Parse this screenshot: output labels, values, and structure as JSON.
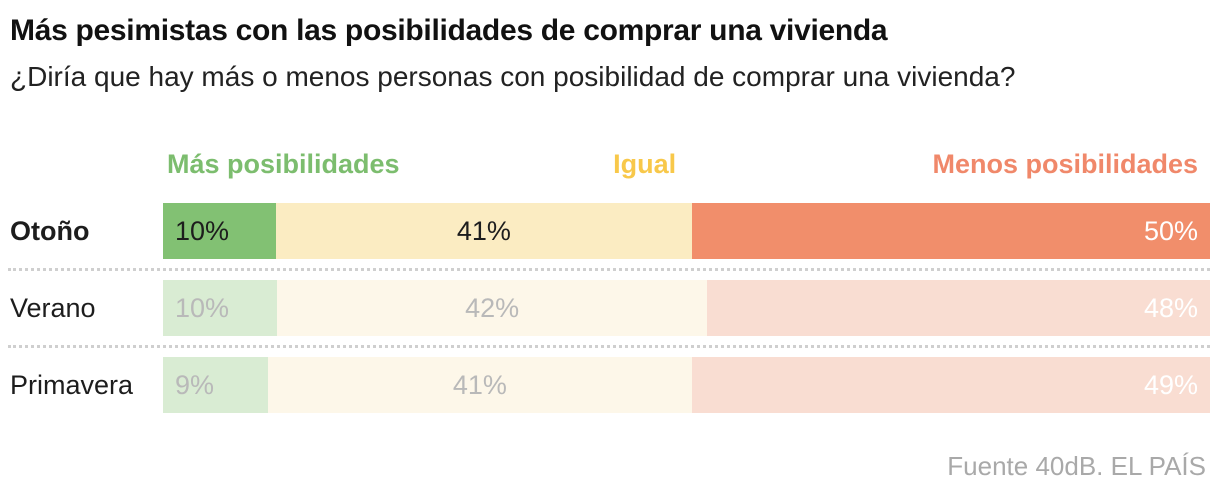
{
  "header": {
    "title": "Más pesimistas con las posibilidades de comprar una vivienda",
    "subtitle": "¿Diría que hay más o menos personas con posibilidad de comprar una vivienda?"
  },
  "legend": {
    "items": [
      {
        "label": "Más posibilidades",
        "color": "#7cbd6e"
      },
      {
        "label": "Igual",
        "color": "#f8c84a"
      },
      {
        "label": "Menos posibilidades",
        "color": "#f0886a"
      }
    ]
  },
  "chart_data": {
    "type": "bar",
    "orientation": "horizontal-stacked",
    "title": "Más pesimistas con las posibilidades de comprar una vivienda",
    "subtitle": "¿Diría que hay más o menos personas con posibilidad de comprar una vivienda?",
    "categories": [
      "Otoño",
      "Verano",
      "Primavera"
    ],
    "series": [
      {
        "name": "Más posibilidades",
        "values": [
          10,
          10,
          9
        ]
      },
      {
        "name": "Igual",
        "values": [
          41,
          42,
          41
        ]
      },
      {
        "name": "Menos posibilidades",
        "values": [
          50,
          48,
          49
        ]
      }
    ],
    "value_suffix": "%",
    "highlighted_category": "Otoño",
    "legend_position": "top",
    "grid": false,
    "palette": {
      "active_fill": [
        "#82c173",
        "#fbecc2",
        "#f18e6b"
      ],
      "faded_fill": [
        "#d9ecd3",
        "#fdf7e9",
        "#f9ddd2"
      ],
      "active_label": [
        "#1d1d1d",
        "#1d1d1d",
        "#ffffff"
      ],
      "faded_label": [
        "#b9b9b9",
        "#b9b9b9",
        "#ffffff"
      ]
    }
  },
  "footer": {
    "source": "Fuente 40dB. EL PAÍS"
  }
}
